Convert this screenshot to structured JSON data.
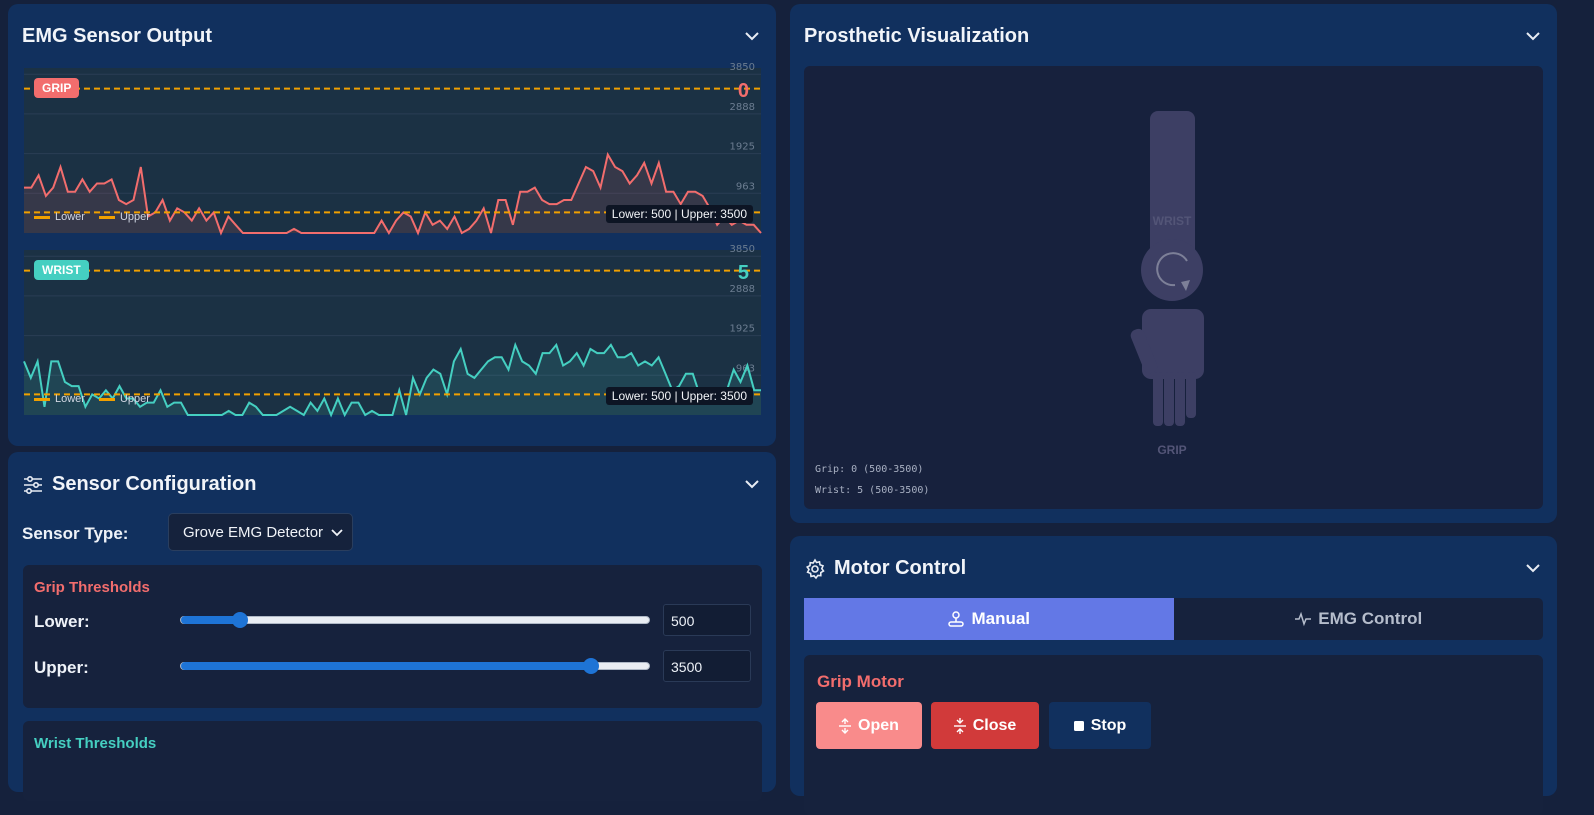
{
  "colors": {
    "grip": "#f26d6d",
    "wrist": "#45cfc1",
    "threshold": "#f0a000",
    "accent": "#6378e6"
  },
  "emg": {
    "title": "EMG Sensor Output",
    "ticks": [
      "3850",
      "2888",
      "1925",
      "963"
    ],
    "legend_lower": "Lower",
    "legend_upper": "Upper",
    "threshold_label": "Lower: 500 | Upper: 3500",
    "grip": {
      "badge": "GRIP",
      "value": "0",
      "samples": [
        1100,
        1100,
        1400,
        900,
        1100,
        1600,
        1000,
        1000,
        1300,
        1000,
        1200,
        1200,
        1300,
        800,
        700,
        800,
        1600,
        400,
        500,
        800,
        300,
        600,
        500,
        300,
        600,
        300,
        500,
        0,
        400,
        200,
        0,
        0,
        0,
        0,
        0,
        0,
        0,
        100,
        0,
        0,
        0,
        0,
        0,
        0,
        0,
        0,
        0,
        0,
        0,
        300,
        0,
        300,
        500,
        400,
        0,
        500,
        200,
        300,
        100,
        400,
        0,
        100,
        300,
        600,
        0,
        800,
        800,
        200,
        1000,
        1000,
        1100,
        800,
        700,
        700,
        800,
        800,
        1200,
        1600,
        1500,
        1100,
        1900,
        1600,
        1500,
        1200,
        1400,
        1700,
        1200,
        1700,
        1000,
        1000,
        700,
        1000,
        1000,
        900,
        600,
        200,
        400,
        200,
        300,
        200,
        200,
        0
      ]
    },
    "wrist": {
      "badge": "WRIST",
      "value": "5",
      "samples": [
        1300,
        900,
        1300,
        200,
        1300,
        1300,
        800,
        700,
        700,
        200,
        500,
        400,
        600,
        400,
        700,
        400,
        400,
        200,
        300,
        300,
        600,
        200,
        300,
        300,
        0,
        0,
        0,
        0,
        0,
        0,
        100,
        0,
        0,
        300,
        200,
        0,
        0,
        0,
        100,
        200,
        100,
        0,
        300,
        100,
        400,
        0,
        400,
        0,
        300,
        300,
        0,
        100,
        0,
        0,
        0,
        600,
        0,
        900,
        500,
        900,
        1100,
        1000,
        500,
        1300,
        1600,
        1000,
        900,
        1100,
        1300,
        1400,
        1400,
        1100,
        1700,
        1300,
        1200,
        1000,
        1500,
        1500,
        1700,
        1200,
        1300,
        1500,
        1200,
        1600,
        1500,
        1500,
        1700,
        1400,
        1400,
        1500,
        1200,
        1300,
        1200,
        1400,
        1000,
        600,
        700,
        1000,
        1000,
        500,
        300,
        400,
        400,
        600,
        1100,
        800,
        1200,
        600,
        600
      ]
    }
  },
  "config": {
    "title": "Sensor Configuration",
    "sensor_type_label": "Sensor Type:",
    "sensor_type_value": "Grove EMG Detector",
    "grip": {
      "title": "Grip Thresholds",
      "lower_label": "Lower:",
      "upper_label": "Upper:",
      "lower": 500,
      "upper": 3500,
      "max": 4000
    },
    "wrist": {
      "title": "Wrist Thresholds"
    }
  },
  "viz": {
    "title": "Prosthetic Visualization",
    "wrist_label": "WRIST",
    "grip_label": "GRIP",
    "status_grip": "Grip: 0 (500-3500)",
    "status_wrist": "Wrist: 5 (500-3500)"
  },
  "motor": {
    "title": "Motor Control",
    "tab_manual": "Manual",
    "tab_emg": "EMG Control",
    "grip_title": "Grip Motor",
    "open": "Open",
    "close": "Close",
    "stop": "Stop"
  }
}
